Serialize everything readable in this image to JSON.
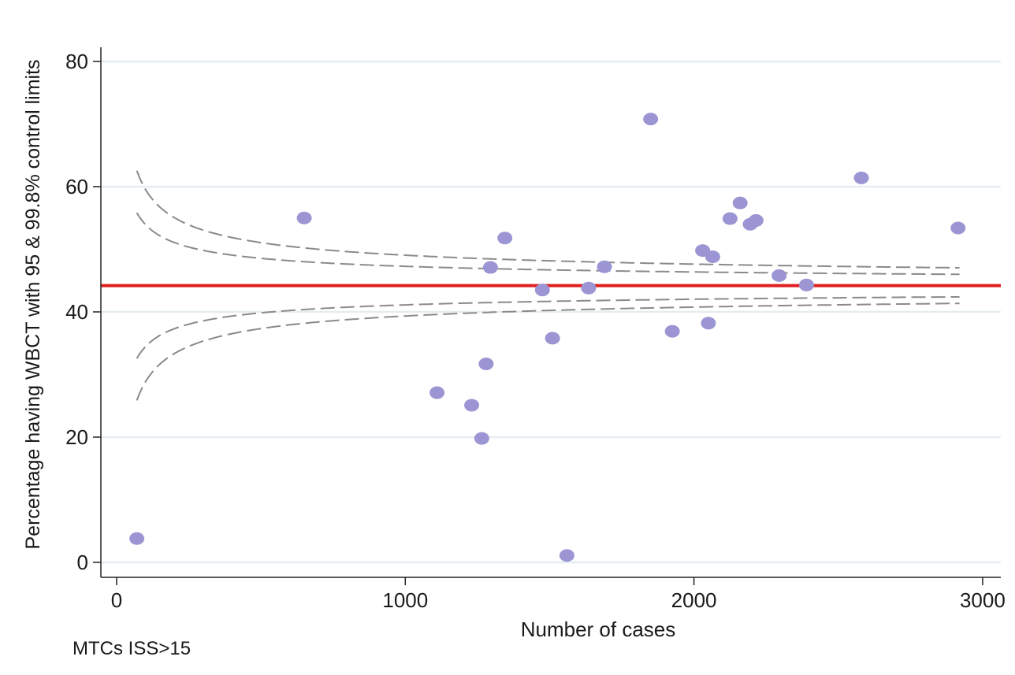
{
  "chart_data": {
    "type": "scatter",
    "title": "",
    "xlabel": "Number of cases",
    "ylabel": "Percentage having WBCT with 95 & 99.8% control limits",
    "note": "MTCs ISS>15",
    "xlim": [
      -50,
      3060
    ],
    "ylim": [
      -3,
      82
    ],
    "xticks": [
      0,
      1000,
      2000,
      3000
    ],
    "yticks": [
      0,
      20,
      40,
      60,
      80
    ],
    "grid": "horizontal",
    "legend": "none",
    "mean": 44.2,
    "colors": {
      "points": "#9b95d3",
      "mean_line": "#e02020",
      "limits": "#8a8a8a",
      "grid": "#e6edf0"
    },
    "points": [
      {
        "x": 70,
        "y": 3.8
      },
      {
        "x": 650,
        "y": 55
      },
      {
        "x": 1110,
        "y": 27.1
      },
      {
        "x": 1230,
        "y": 25.1
      },
      {
        "x": 1265,
        "y": 19.8
      },
      {
        "x": 1280,
        "y": 31.7
      },
      {
        "x": 1295,
        "y": 47.1
      },
      {
        "x": 1345,
        "y": 51.8
      },
      {
        "x": 1475,
        "y": 43.5
      },
      {
        "x": 1510,
        "y": 35.8
      },
      {
        "x": 1560,
        "y": 1.1
      },
      {
        "x": 1635,
        "y": 43.8
      },
      {
        "x": 1690,
        "y": 47.2
      },
      {
        "x": 1850,
        "y": 70.8
      },
      {
        "x": 1925,
        "y": 36.9
      },
      {
        "x": 2030,
        "y": 49.8
      },
      {
        "x": 2050,
        "y": 38.2
      },
      {
        "x": 2065,
        "y": 48.8
      },
      {
        "x": 2125,
        "y": 54.9
      },
      {
        "x": 2160,
        "y": 57.4
      },
      {
        "x": 2195,
        "y": 54
      },
      {
        "x": 2215,
        "y": 54.6
      },
      {
        "x": 2295,
        "y": 45.8
      },
      {
        "x": 2390,
        "y": 44.3
      },
      {
        "x": 2580,
        "y": 61.4
      },
      {
        "x": 2915,
        "y": 53.4
      }
    ],
    "control_limits": [
      {
        "name": "99.8% upper",
        "z": 3.09
      },
      {
        "name": "95% upper",
        "z": 1.96
      },
      {
        "name": "95% lower",
        "z": -1.96
      },
      {
        "name": "99.8% lower",
        "z": -3.09
      }
    ],
    "limit_x_range": [
      70,
      2920
    ]
  }
}
